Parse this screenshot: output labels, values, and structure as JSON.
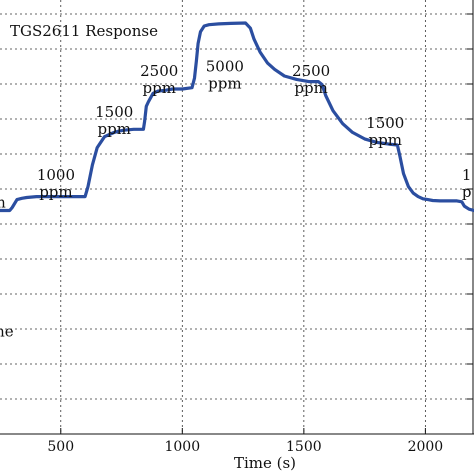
{
  "chart_data": {
    "type": "line",
    "title": "TGS2611 Response",
    "xlabel": "Time (s)",
    "ylabel": "",
    "xlim": [
      250,
      2200
    ],
    "ylim": [
      0,
      1
    ],
    "x_ticks": [
      500,
      1000,
      1500,
      2000
    ],
    "y_tick_count_visible": 12,
    "grid": true,
    "series": [
      {
        "color": "#2b4ea0",
        "x": [
          250,
          290,
          300,
          320,
          340,
          360,
          400,
          500,
          600,
          612,
          630,
          650,
          680,
          700,
          720,
          740,
          760,
          800,
          840,
          845,
          852,
          860,
          880,
          900,
          930,
          960,
          1000,
          1040,
          1050,
          1058,
          1065,
          1075,
          1090,
          1110,
          1150,
          1200,
          1260,
          1280,
          1295,
          1320,
          1350,
          1380,
          1420,
          1470,
          1520,
          1560,
          1575,
          1590,
          1620,
          1660,
          1700,
          1750,
          1800,
          1850,
          1885,
          1895,
          1910,
          1930,
          1950,
          1970,
          1990,
          2010,
          2030,
          2060,
          2100,
          2130,
          2150,
          2160,
          2180,
          2200
        ],
        "y": [
          0.515,
          0.515,
          0.522,
          0.54,
          0.543,
          0.545,
          0.547,
          0.547,
          0.547,
          0.57,
          0.62,
          0.66,
          0.685,
          0.69,
          0.695,
          0.698,
          0.7,
          0.702,
          0.702,
          0.72,
          0.755,
          0.765,
          0.785,
          0.79,
          0.792,
          0.795,
          0.795,
          0.798,
          0.82,
          0.86,
          0.9,
          0.927,
          0.94,
          0.943,
          0.945,
          0.946,
          0.947,
          0.935,
          0.91,
          0.88,
          0.855,
          0.84,
          0.825,
          0.817,
          0.812,
          0.812,
          0.805,
          0.78,
          0.745,
          0.715,
          0.695,
          0.68,
          0.672,
          0.668,
          0.666,
          0.64,
          0.6,
          0.57,
          0.555,
          0.547,
          0.542,
          0.54,
          0.538,
          0.537,
          0.537,
          0.537,
          0.535,
          0.525,
          0.518,
          0.515
        ]
      }
    ],
    "annotations": [
      {
        "line1": "1000",
        "line2": "ppm",
        "x": 480,
        "y": 0.585
      },
      {
        "line1": "1500",
        "line2": "ppm",
        "x": 720,
        "y": 0.73
      },
      {
        "line1": "2500",
        "line2": "ppm",
        "x": 905,
        "y": 0.825
      },
      {
        "line1": "5000",
        "line2": "ppm",
        "x": 1175,
        "y": 0.835
      },
      {
        "line1": "2500",
        "line2": "ppm",
        "x": 1530,
        "y": 0.825
      },
      {
        "line1": "1500",
        "line2": "ppm",
        "x": 1835,
        "y": 0.705
      },
      {
        "line1": "1",
        "line2": "p",
        "x": 2170,
        "y": 0.585
      },
      {
        "line1": "ine",
        "line2": "",
        "x": 258,
        "y": 0.225
      },
      {
        "line1": "n",
        "line2": "",
        "x": 254,
        "y": 0.522
      }
    ]
  },
  "colors": {
    "line": "#2b4ea0",
    "axis": "#111111",
    "grid": "#333333"
  }
}
